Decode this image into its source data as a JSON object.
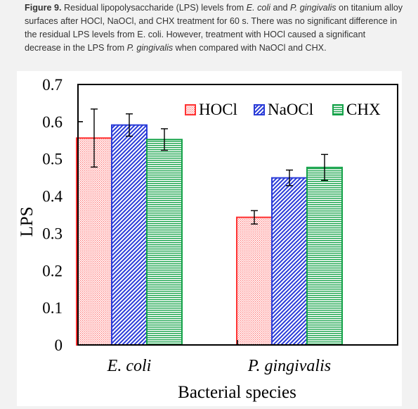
{
  "caption": {
    "label": "Figure 9.",
    "part1": " Residual lipopolysaccharide (LPS) levels from ",
    "species1": "E. coli",
    "part2": " and ",
    "species2": "P. gingivalis",
    "part3": " on titanium alloy surfaces after HOCl, NaOCl, and CHX treatment for 60 s. There was no significant difference in the residual LPS levels from E. coli. However, treatment with HOCl caused a significant decrease in the LPS from ",
    "species3": "P. gingivalis",
    "part4": " when compared with NaOCl and CHX."
  },
  "chart_data": {
    "type": "bar",
    "categories": [
      "E. coli",
      "P. gingivalis"
    ],
    "series": [
      {
        "name": "HOCl",
        "values": [
          0.556,
          0.343
        ],
        "errors": [
          0.078,
          0.018
        ],
        "color": "#ff3333"
      },
      {
        "name": "NaOCl",
        "values": [
          0.591,
          0.449
        ],
        "errors": [
          0.03,
          0.021
        ],
        "color": "#2a3cd8"
      },
      {
        "name": "CHX",
        "values": [
          0.552,
          0.477
        ],
        "errors": [
          0.029,
          0.035
        ],
        "color": "#16a34a"
      }
    ],
    "xlabel": "Bacterial species",
    "ylabel": "LPS",
    "ylim": [
      0,
      0.7
    ],
    "yticks": [
      "0",
      "0.1",
      "0.2",
      "0.3",
      "0.4",
      "0.5",
      "0.6",
      "0.7"
    ],
    "legend_position": "top-right",
    "grid": false
  }
}
